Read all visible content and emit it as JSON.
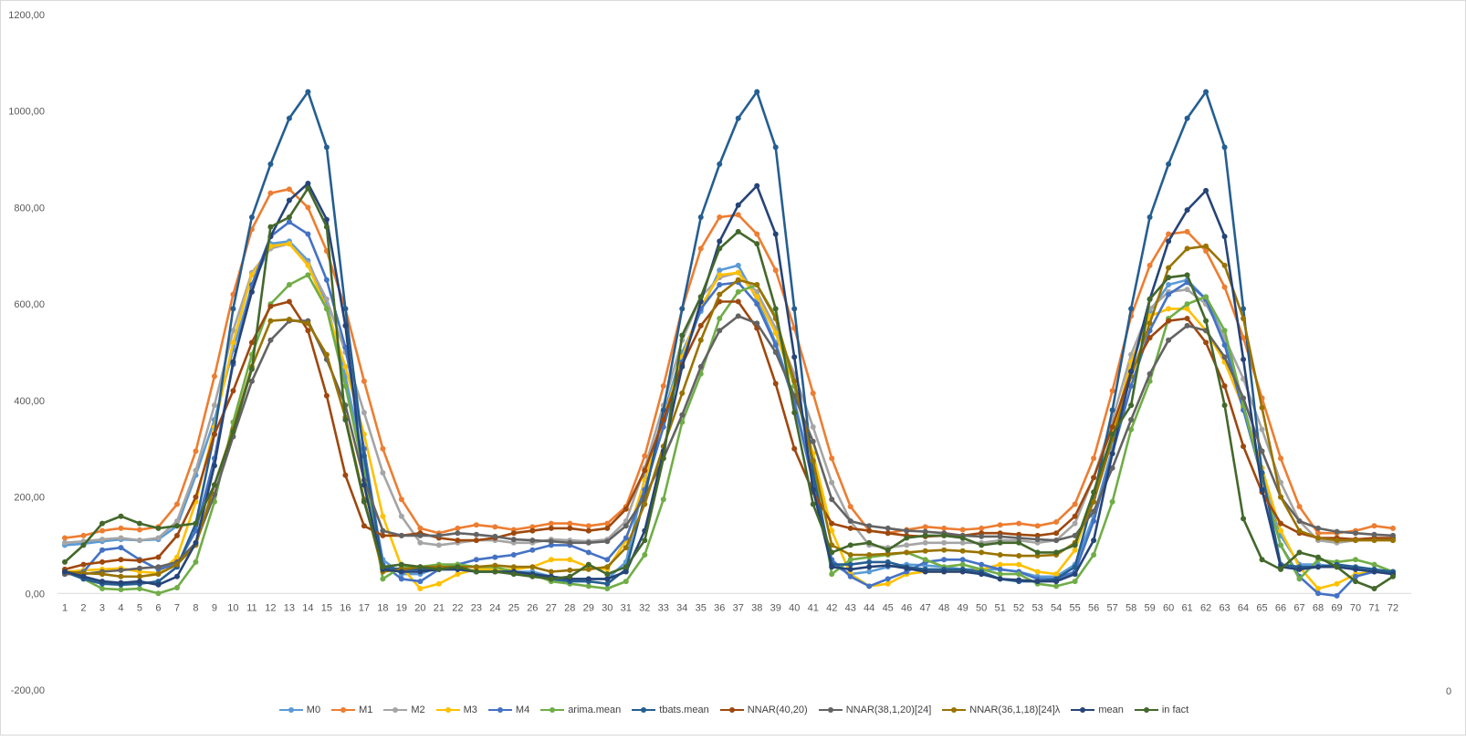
{
  "chart_data": {
    "type": "line",
    "title": "",
    "xlabel": "",
    "ylabel": "",
    "ylim": [
      -200,
      1200
    ],
    "yticks": [
      "-200,00",
      "0,00",
      "200,00",
      "400,00",
      "600,00",
      "800,00",
      "1000,00",
      "1200,00"
    ],
    "ytick_values": [
      -200,
      0,
      200,
      400,
      600,
      800,
      1000,
      1200
    ],
    "x": [
      1,
      2,
      3,
      4,
      5,
      6,
      7,
      8,
      9,
      10,
      11,
      12,
      13,
      14,
      15,
      16,
      17,
      18,
      19,
      20,
      21,
      22,
      23,
      24,
      25,
      26,
      27,
      28,
      29,
      30,
      31,
      32,
      33,
      34,
      35,
      36,
      37,
      38,
      39,
      40,
      41,
      42,
      43,
      44,
      45,
      46,
      47,
      48,
      49,
      50,
      51,
      52,
      53,
      54,
      55,
      56,
      57,
      58,
      59,
      60,
      61,
      62,
      63,
      64,
      65,
      66,
      67,
      68,
      69,
      70,
      71,
      72
    ],
    "x_stray_label": "0",
    "legend_position": "bottom",
    "grid": false,
    "series": [
      {
        "name": "M0",
        "color": "#5b9bd5",
        "values": [
          100,
          103,
          108,
          112,
          110,
          112,
          140,
          245,
          360,
          505,
          635,
          725,
          730,
          690,
          600,
          450,
          270,
          70,
          40,
          40,
          55,
          55,
          55,
          50,
          45,
          45,
          35,
          30,
          30,
          30,
          65,
          240,
          370,
          500,
          585,
          670,
          680,
          610,
          520,
          400,
          240,
          60,
          40,
          45,
          55,
          60,
          58,
          55,
          50,
          50,
          50,
          45,
          35,
          35,
          60,
          160,
          300,
          470,
          585,
          640,
          650,
          610,
          530,
          390,
          260,
          120,
          60,
          60,
          55,
          50,
          45,
          45
        ]
      },
      {
        "name": "M1",
        "color": "#ed7d31",
        "values": [
          115,
          120,
          130,
          135,
          132,
          138,
          185,
          295,
          450,
          620,
          755,
          830,
          838,
          800,
          710,
          590,
          440,
          300,
          195,
          135,
          125,
          135,
          142,
          138,
          132,
          138,
          145,
          145,
          140,
          145,
          180,
          285,
          430,
          590,
          715,
          780,
          785,
          745,
          670,
          550,
          415,
          280,
          180,
          130,
          125,
          132,
          138,
          135,
          132,
          135,
          142,
          145,
          140,
          148,
          185,
          280,
          420,
          575,
          680,
          745,
          750,
          710,
          635,
          530,
          405,
          280,
          180,
          125,
          125,
          130,
          140,
          135
        ]
      },
      {
        "name": "M2",
        "color": "#a5a5a5",
        "values": [
          105,
          108,
          112,
          115,
          110,
          115,
          150,
          255,
          390,
          545,
          665,
          715,
          725,
          685,
          610,
          500,
          375,
          250,
          160,
          105,
          100,
          105,
          110,
          110,
          105,
          105,
          112,
          110,
          108,
          112,
          150,
          260,
          390,
          525,
          615,
          655,
          665,
          625,
          550,
          455,
          345,
          230,
          150,
          100,
          95,
          100,
          105,
          105,
          105,
          105,
          110,
          110,
          105,
          110,
          145,
          240,
          360,
          495,
          590,
          625,
          630,
          600,
          530,
          445,
          340,
          230,
          150,
          110,
          105,
          110,
          115,
          110
        ]
      },
      {
        "name": "M3",
        "color": "#ffc000",
        "values": [
          45,
          48,
          50,
          52,
          45,
          42,
          75,
          190,
          345,
          520,
          660,
          720,
          725,
          680,
          590,
          470,
          330,
          160,
          55,
          10,
          20,
          40,
          50,
          50,
          50,
          55,
          70,
          70,
          55,
          50,
          110,
          235,
          360,
          490,
          595,
          660,
          665,
          615,
          540,
          430,
          290,
          130,
          40,
          15,
          20,
          40,
          45,
          45,
          45,
          50,
          60,
          60,
          45,
          40,
          90,
          200,
          330,
          480,
          575,
          590,
          590,
          545,
          480,
          385,
          260,
          130,
          55,
          10,
          20,
          40,
          45,
          40
        ]
      },
      {
        "name": "M4",
        "color": "#4472c4",
        "values": [
          40,
          45,
          90,
          95,
          70,
          50,
          60,
          130,
          280,
          475,
          640,
          740,
          770,
          745,
          650,
          510,
          300,
          60,
          30,
          25,
          50,
          60,
          70,
          75,
          80,
          90,
          100,
          100,
          85,
          70,
          115,
          215,
          345,
          480,
          590,
          640,
          645,
          600,
          515,
          395,
          230,
          70,
          35,
          15,
          30,
          45,
          65,
          70,
          70,
          60,
          50,
          45,
          30,
          30,
          45,
          150,
          290,
          430,
          545,
          620,
          645,
          610,
          515,
          380,
          240,
          100,
          35,
          0,
          -5,
          35,
          45,
          40
        ]
      },
      {
        "name": "arima.mean",
        "color": "#70ad47",
        "values": [
          45,
          30,
          10,
          8,
          10,
          0,
          12,
          65,
          190,
          355,
          495,
          600,
          640,
          660,
          590,
          430,
          250,
          30,
          55,
          55,
          60,
          60,
          55,
          55,
          45,
          40,
          25,
          20,
          15,
          10,
          25,
          80,
          195,
          355,
          455,
          570,
          625,
          640,
          575,
          430,
          270,
          40,
          70,
          75,
          80,
          85,
          70,
          55,
          60,
          50,
          40,
          40,
          20,
          15,
          25,
          80,
          190,
          340,
          440,
          570,
          600,
          615,
          545,
          390,
          240,
          100,
          30,
          70,
          65,
          70,
          60,
          45
        ]
      },
      {
        "name": "tbats.mean",
        "color": "#255e91",
        "values": [
          45,
          30,
          20,
          18,
          20,
          25,
          55,
          145,
          330,
          590,
          780,
          890,
          985,
          1040,
          925,
          590,
          285,
          55,
          50,
          50,
          50,
          50,
          45,
          45,
          45,
          40,
          30,
          25,
          25,
          20,
          50,
          200,
          380,
          590,
          780,
          890,
          985,
          1040,
          925,
          590,
          250,
          60,
          60,
          65,
          65,
          55,
          50,
          50,
          50,
          45,
          30,
          25,
          25,
          30,
          55,
          200,
          380,
          590,
          780,
          890,
          985,
          1040,
          925,
          590,
          250,
          60,
          55,
          55,
          60,
          55,
          50,
          45
        ]
      },
      {
        "name": "NNAR(40,20)",
        "color": "#9e480e",
        "values": [
          50,
          60,
          65,
          70,
          68,
          75,
          120,
          200,
          330,
          420,
          520,
          595,
          605,
          545,
          410,
          245,
          140,
          120,
          120,
          125,
          115,
          110,
          110,
          115,
          125,
          130,
          135,
          135,
          130,
          135,
          175,
          255,
          360,
          475,
          555,
          605,
          605,
          550,
          435,
          300,
          210,
          145,
          135,
          130,
          125,
          120,
          118,
          120,
          120,
          125,
          125,
          122,
          120,
          125,
          160,
          240,
          345,
          460,
          530,
          565,
          570,
          520,
          430,
          305,
          210,
          145,
          125,
          115,
          115,
          112,
          115,
          115
        ]
      },
      {
        "name": "NNAR(38,1,20)[24]",
        "color": "#636363",
        "values": [
          40,
          40,
          45,
          48,
          52,
          55,
          65,
          105,
          205,
          325,
          440,
          525,
          565,
          565,
          485,
          390,
          235,
          130,
          120,
          120,
          120,
          125,
          122,
          118,
          112,
          110,
          108,
          105,
          105,
          108,
          140,
          200,
          280,
          370,
          470,
          545,
          575,
          560,
          500,
          410,
          315,
          195,
          150,
          140,
          135,
          130,
          128,
          125,
          120,
          118,
          118,
          115,
          112,
          110,
          120,
          170,
          260,
          360,
          455,
          525,
          555,
          545,
          490,
          405,
          295,
          200,
          150,
          135,
          128,
          125,
          122,
          120
        ]
      },
      {
        "name": "NNAR(36,1,18)[24]λ",
        "color": "#997300",
        "values": [
          45,
          42,
          40,
          35,
          35,
          40,
          60,
          100,
          225,
          340,
          470,
          565,
          568,
          560,
          495,
          365,
          195,
          45,
          50,
          55,
          55,
          55,
          55,
          58,
          55,
          55,
          45,
          48,
          50,
          55,
          95,
          185,
          305,
          415,
          525,
          620,
          650,
          640,
          570,
          440,
          275,
          100,
          80,
          80,
          82,
          85,
          88,
          90,
          88,
          85,
          80,
          78,
          78,
          80,
          105,
          190,
          320,
          450,
          560,
          675,
          715,
          720,
          680,
          570,
          385,
          200,
          130,
          115,
          110,
          110,
          110,
          110
        ]
      },
      {
        "name": "mean",
        "color": "#264478",
        "values": [
          45,
          35,
          25,
          22,
          25,
          18,
          35,
          105,
          265,
          480,
          625,
          740,
          815,
          850,
          775,
          555,
          225,
          50,
          45,
          45,
          50,
          50,
          45,
          45,
          45,
          40,
          35,
          30,
          30,
          30,
          45,
          130,
          295,
          470,
          605,
          730,
          805,
          845,
          745,
          490,
          215,
          55,
          50,
          55,
          58,
          52,
          45,
          45,
          45,
          40,
          30,
          28,
          25,
          25,
          40,
          110,
          290,
          460,
          610,
          730,
          795,
          835,
          740,
          485,
          215,
          55,
          50,
          55,
          55,
          50,
          45,
          40
        ]
      },
      {
        "name": "in fact",
        "color": "#43682b",
        "values": [
          65,
          100,
          145,
          160,
          145,
          135,
          140,
          145,
          225,
          335,
          465,
          760,
          780,
          840,
          760,
          360,
          190,
          55,
          60,
          55,
          50,
          55,
          45,
          45,
          40,
          35,
          30,
          35,
          60,
          40,
          55,
          110,
          280,
          535,
          615,
          715,
          750,
          725,
          590,
          375,
          185,
          85,
          100,
          105,
          90,
          115,
          120,
          120,
          115,
          100,
          105,
          105,
          85,
          85,
          100,
          210,
          330,
          390,
          610,
          655,
          660,
          565,
          390,
          155,
          70,
          50,
          85,
          75,
          55,
          25,
          10,
          35
        ]
      }
    ]
  }
}
